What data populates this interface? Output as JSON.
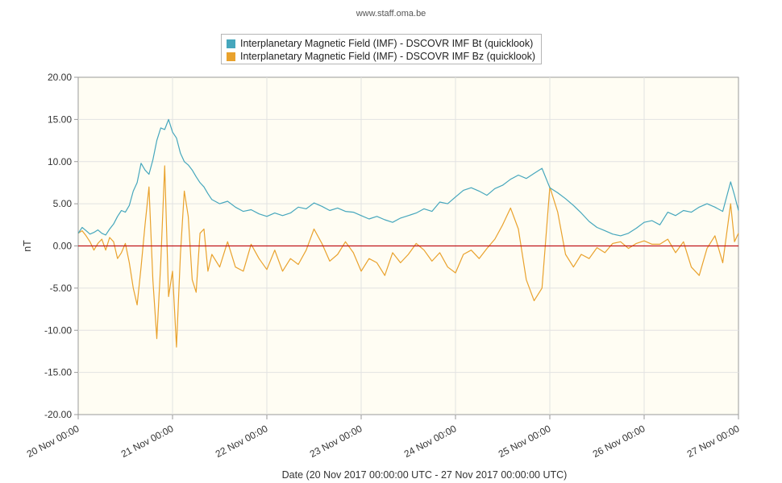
{
  "credit": "www.staff.oma.be",
  "colors": {
    "bt": "#46a7bd",
    "bz": "#e9a22d",
    "zero_line": "#c0151a",
    "plot_bg": "#fffdf3",
    "grid": "#e2e2e2"
  },
  "chart_data": {
    "type": "line",
    "xlabel": "Date (20 Nov 2017 00:00:00 UTC - 27 Nov 2017 00:00:00 UTC)",
    "ylabel": "nT",
    "ylim": [
      -20,
      20
    ],
    "xlim_hours": [
      0,
      168
    ],
    "y_ticks": [
      "20.00",
      "15.00",
      "10.00",
      "5.00",
      "0.00",
      "-5.00",
      "-10.00",
      "-15.00",
      "-20.00"
    ],
    "x_ticks": [
      "20 Nov 00:00",
      "21 Nov 00:00",
      "22 Nov 00:00",
      "23 Nov 00:00",
      "24 Nov 00:00",
      "25 Nov 00:00",
      "26 Nov 00:00",
      "27 Nov 00:00"
    ],
    "grid": true,
    "legend_position": "top-center",
    "reference_line": {
      "y": 0
    },
    "series": [
      {
        "name": "Interplanetary Magnetic Field (IMF) - DSCOVR IMF Bt (quicklook)",
        "key": "bt",
        "x_hours": [
          0,
          1,
          2,
          3,
          4,
          5,
          6,
          7,
          8,
          9,
          10,
          11,
          12,
          13,
          14,
          15,
          16,
          17,
          18,
          19,
          20,
          21,
          22,
          23,
          24,
          25,
          26,
          27,
          28,
          29,
          30,
          31,
          32,
          33,
          34,
          36,
          38,
          40,
          42,
          44,
          46,
          48,
          50,
          52,
          54,
          56,
          58,
          60,
          62,
          64,
          66,
          68,
          70,
          72,
          74,
          76,
          78,
          80,
          82,
          84,
          86,
          88,
          90,
          92,
          94,
          96,
          98,
          100,
          102,
          104,
          106,
          108,
          110,
          112,
          114,
          116,
          118,
          120,
          122,
          124,
          126,
          128,
          130,
          132,
          134,
          136,
          138,
          140,
          142,
          144,
          146,
          148,
          150,
          152,
          154,
          156,
          158,
          160,
          162,
          164,
          166,
          167,
          168
        ],
        "values": [
          1.5,
          2.2,
          1.8,
          1.4,
          1.6,
          1.9,
          1.5,
          1.3,
          2.0,
          2.6,
          3.5,
          4.2,
          4.0,
          4.8,
          6.5,
          7.5,
          9.8,
          9.0,
          8.5,
          10.2,
          12.5,
          14.0,
          13.8,
          15.0,
          13.5,
          12.8,
          11.0,
          10.0,
          9.6,
          9.0,
          8.2,
          7.5,
          7.0,
          6.2,
          5.5,
          5.0,
          5.3,
          4.6,
          4.1,
          4.3,
          3.8,
          3.5,
          3.9,
          3.6,
          3.9,
          4.6,
          4.4,
          5.1,
          4.7,
          4.2,
          4.5,
          4.1,
          4.0,
          3.6,
          3.2,
          3.5,
          3.1,
          2.8,
          3.3,
          3.6,
          3.9,
          4.4,
          4.1,
          5.2,
          5.0,
          5.8,
          6.6,
          6.9,
          6.5,
          6.0,
          6.8,
          7.2,
          7.9,
          8.4,
          8.0,
          8.6,
          9.2,
          6.9,
          6.3,
          5.6,
          4.8,
          3.9,
          2.9,
          2.2,
          1.8,
          1.4,
          1.2,
          1.5,
          2.1,
          2.8,
          3.0,
          2.5,
          4.0,
          3.6,
          4.2,
          4.0,
          4.6,
          5.0,
          4.6,
          4.1,
          7.6,
          6.0,
          4.2
        ]
      },
      {
        "name": "Interplanetary Magnetic Field (IMF) - DSCOVR IMF Bz (quicklook)",
        "key": "bz",
        "x_hours": [
          0,
          1,
          2,
          3,
          4,
          5,
          6,
          7,
          8,
          9,
          10,
          11,
          12,
          13,
          14,
          15,
          16,
          17,
          18,
          19,
          20,
          21,
          22,
          23,
          24,
          25,
          26,
          27,
          28,
          29,
          30,
          31,
          32,
          33,
          34,
          36,
          38,
          40,
          42,
          44,
          46,
          48,
          50,
          52,
          54,
          56,
          58,
          60,
          62,
          64,
          66,
          68,
          70,
          72,
          74,
          76,
          78,
          80,
          82,
          84,
          86,
          88,
          90,
          92,
          94,
          96,
          98,
          100,
          102,
          104,
          106,
          108,
          110,
          112,
          114,
          116,
          118,
          120,
          122,
          124,
          126,
          128,
          130,
          132,
          134,
          136,
          138,
          140,
          142,
          144,
          146,
          148,
          150,
          152,
          154,
          156,
          158,
          160,
          162,
          164,
          166,
          167,
          168
        ],
        "values": [
          1.5,
          1.8,
          1.2,
          0.5,
          -0.5,
          0.3,
          0.8,
          -0.5,
          1.0,
          0.5,
          -1.5,
          -0.8,
          0.3,
          -2.0,
          -5.0,
          -7.0,
          -2.5,
          2.5,
          7.0,
          -4.0,
          -11.0,
          -2.0,
          9.5,
          -6.0,
          -3.0,
          -12.0,
          -1.0,
          6.5,
          3.5,
          -4.0,
          -5.5,
          1.5,
          2.0,
          -3.0,
          -1.0,
          -2.5,
          0.5,
          -2.5,
          -3.0,
          0.2,
          -1.5,
          -2.8,
          -0.5,
          -3.0,
          -1.5,
          -2.2,
          -0.5,
          2.0,
          0.3,
          -1.8,
          -1.0,
          0.5,
          -0.8,
          -3.0,
          -1.5,
          -2.0,
          -3.5,
          -0.8,
          -2.0,
          -1.0,
          0.3,
          -0.5,
          -1.8,
          -0.8,
          -2.5,
          -3.2,
          -1.0,
          -0.5,
          -1.5,
          -0.3,
          0.8,
          2.5,
          4.5,
          2.0,
          -4.0,
          -6.5,
          -5.0,
          7.0,
          4.0,
          -1.0,
          -2.5,
          -1.0,
          -1.5,
          -0.2,
          -0.8,
          0.3,
          0.5,
          -0.3,
          0.3,
          0.6,
          0.2,
          0.2,
          0.8,
          -0.8,
          0.5,
          -2.5,
          -3.5,
          -0.3,
          1.2,
          -2.0,
          5.0,
          0.5,
          1.5
        ]
      }
    ]
  }
}
